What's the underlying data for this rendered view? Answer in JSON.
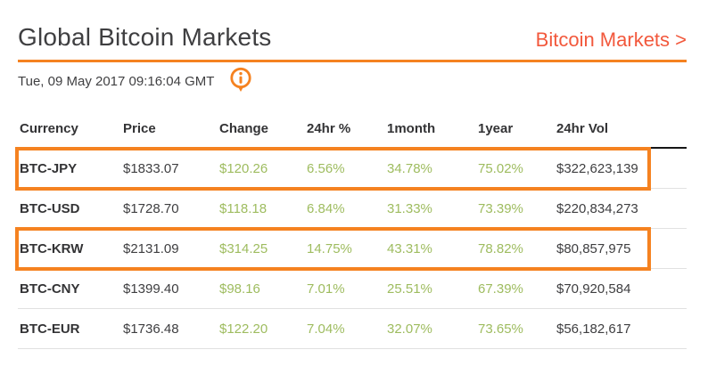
{
  "page": {
    "title": "Global Bitcoin Markets",
    "link_label": "Bitcoin Markets >",
    "timestamp": "Tue, 09 May 2017 09:16:04 GMT",
    "info_icon": "info-icon"
  },
  "colors": {
    "accent_orange": "#f58220",
    "link_orange": "#f2583c",
    "positive_green": "#9ebc5f",
    "text_dark": "#3e3e40",
    "header_border_dark": "#161616",
    "row_separator": "#e1e1e1"
  },
  "table": {
    "columns": [
      "Currency",
      "Price",
      "Change",
      "24hr %",
      "1month",
      "1year",
      "24hr Vol"
    ],
    "green_columns": [
      2,
      3,
      4,
      5
    ],
    "rows": [
      {
        "cells": [
          "BTC-JPY",
          "$1833.07",
          "$120.26",
          "6.56%",
          "34.78%",
          "75.02%",
          "$322,623,139"
        ],
        "highlighted": true
      },
      {
        "cells": [
          "BTC-USD",
          "$1728.70",
          "$118.18",
          "6.84%",
          "31.33%",
          "73.39%",
          "$220,834,273"
        ],
        "highlighted": false
      },
      {
        "cells": [
          "BTC-KRW",
          "$2131.09",
          "$314.25",
          "14.75%",
          "43.31%",
          "78.82%",
          "$80,857,975"
        ],
        "highlighted": true
      },
      {
        "cells": [
          "BTC-CNY",
          "$1399.40",
          "$98.16",
          "7.01%",
          "25.51%",
          "67.39%",
          "$70,920,584"
        ],
        "highlighted": false
      },
      {
        "cells": [
          "BTC-EUR",
          "$1736.48",
          "$122.20",
          "7.04%",
          "32.07%",
          "73.65%",
          "$56,182,617"
        ],
        "highlighted": false
      }
    ]
  }
}
